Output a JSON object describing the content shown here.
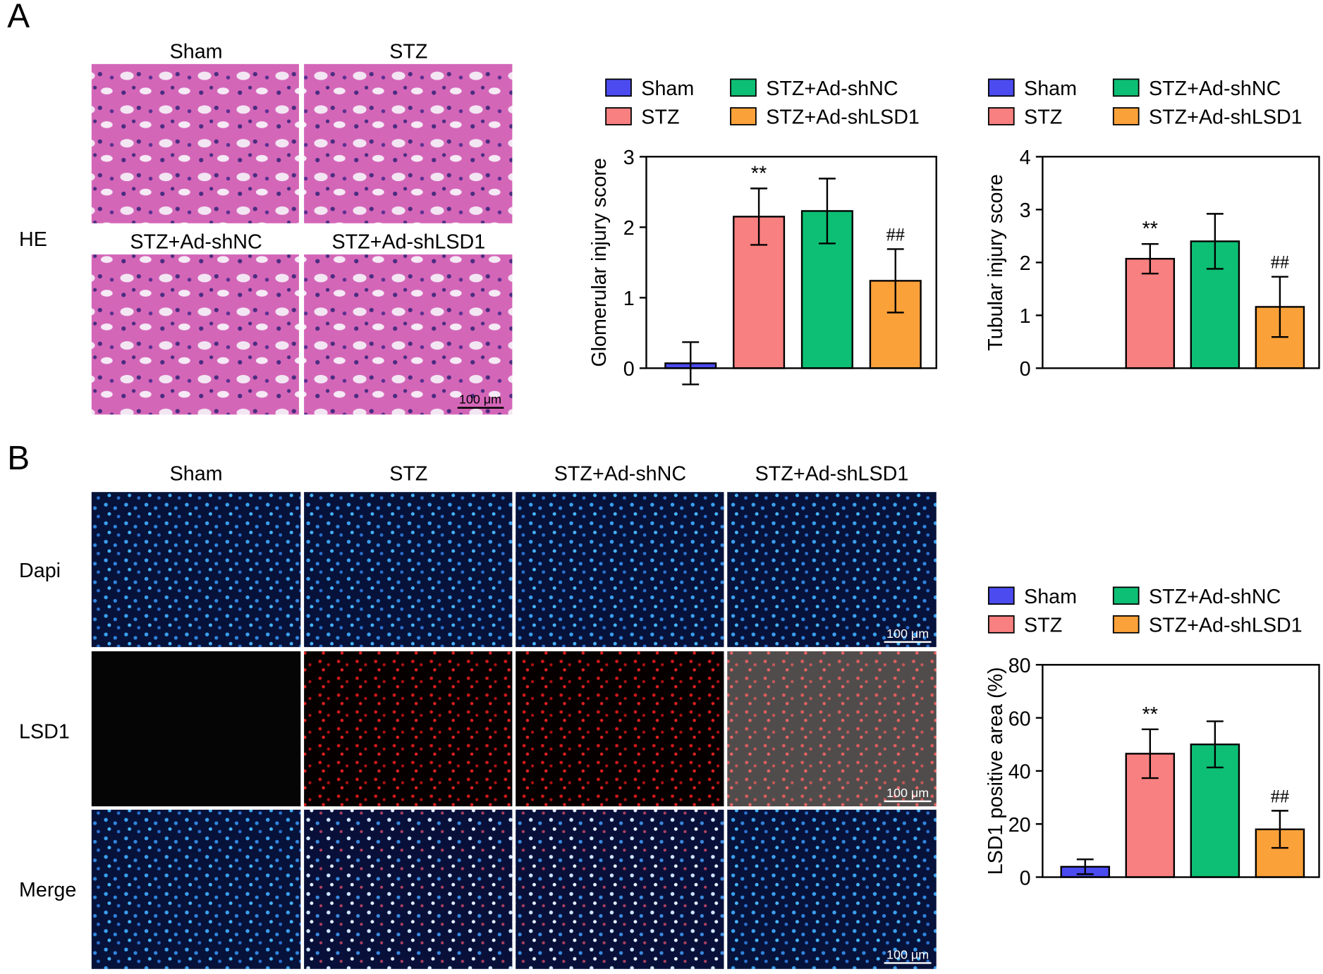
{
  "panel_labels": [
    "A",
    "B"
  ],
  "he_images": {
    "row_label": "HE",
    "titles": [
      "Sham",
      "STZ",
      "STZ+Ad-shNC",
      "STZ+Ad-shLSD1"
    ],
    "scale_bar": "100 μm"
  },
  "if_images": {
    "titles": [
      "Sham",
      "STZ",
      "STZ+Ad-shNC",
      "STZ+Ad-shLSD1"
    ],
    "row_labels": [
      "Dapi",
      "LSD1",
      "Merge"
    ],
    "scale_bar": "100 μm"
  },
  "chart_data": [
    {
      "type": "bar",
      "y_label": "Glomerular injury score",
      "categories": [
        "Sham",
        "STZ",
        "STZ+Ad-shNC",
        "STZ+Ad-shLSD1"
      ],
      "colors": [
        "#4b4bf0",
        "#f98080",
        "#0dbf74",
        "#fba13a"
      ],
      "values": [
        0.07,
        2.15,
        2.23,
        1.24
      ],
      "errors": [
        0.3,
        0.4,
        0.46,
        0.45
      ],
      "annotations": [
        null,
        "**",
        null,
        "##"
      ],
      "ylim": [
        0,
        3
      ],
      "yticks": [
        0,
        1,
        2,
        3
      ]
    },
    {
      "type": "bar",
      "y_label": "Tubular injury score",
      "categories": [
        "Sham",
        "STZ",
        "STZ+Ad-shNC",
        "STZ+Ad-shLSD1"
      ],
      "colors": [
        "#4b4bf0",
        "#f98080",
        "#0dbf74",
        "#fba13a"
      ],
      "values": [
        0,
        2.07,
        2.4,
        1.16
      ],
      "errors": [
        0,
        0.28,
        0.52,
        0.57
      ],
      "annotations": [
        null,
        "**",
        null,
        "##"
      ],
      "ylim": [
        0,
        4
      ],
      "yticks": [
        0,
        1,
        2,
        3,
        4
      ]
    },
    {
      "type": "bar",
      "y_label": "LSD1 positive area (%)",
      "categories": [
        "Sham",
        "STZ",
        "STZ+Ad-shNC",
        "STZ+Ad-shLSD1"
      ],
      "colors": [
        "#4b4bf0",
        "#f98080",
        "#0dbf74",
        "#fba13a"
      ],
      "values": [
        3.9,
        46.5,
        50,
        18
      ],
      "errors": [
        2.8,
        9.2,
        8.7,
        7
      ],
      "annotations": [
        null,
        "**",
        null,
        "##"
      ],
      "ylim": [
        0,
        80
      ],
      "yticks": [
        0,
        20,
        40,
        60,
        80
      ]
    }
  ]
}
